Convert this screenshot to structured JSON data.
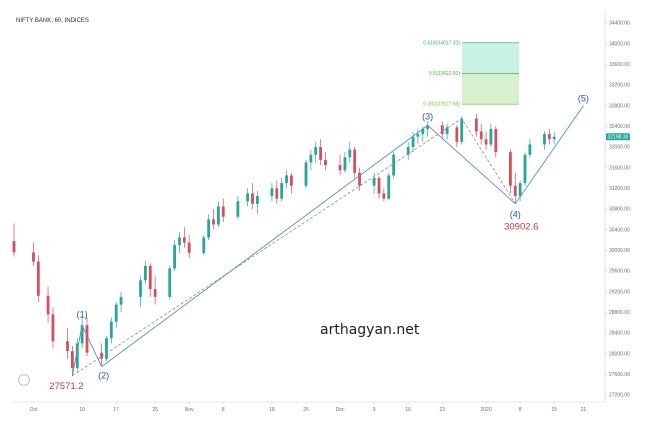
{
  "chart_data": {
    "type": "candlestick",
    "title": "NIFTY BANK, 60, INDICES",
    "xlabel": "",
    "ylabel": "",
    "ylim": [
      27100,
      34500
    ],
    "y_ticks": [
      {
        "value": 34400,
        "label": "34400.00"
      },
      {
        "value": 34000,
        "label": "34000.00"
      },
      {
        "value": 33600,
        "label": "33600.00"
      },
      {
        "value": 33200,
        "label": "33200.00"
      },
      {
        "value": 32800,
        "label": "32800.00"
      },
      {
        "value": 32400,
        "label": "32400.00"
      },
      {
        "value": 32000,
        "label": "32000.00"
      },
      {
        "value": 31600,
        "label": "31600.00"
      },
      {
        "value": 31200,
        "label": "31200.00"
      },
      {
        "value": 30800,
        "label": "30800.00"
      },
      {
        "value": 30400,
        "label": "30400.00"
      },
      {
        "value": 30000,
        "label": "30000.00"
      },
      {
        "value": 29600,
        "label": "29600.00"
      },
      {
        "value": 29200,
        "label": "29200.00"
      },
      {
        "value": 28800,
        "label": "28800.00"
      },
      {
        "value": 28400,
        "label": "28400.00"
      },
      {
        "value": 28000,
        "label": "28000.00"
      },
      {
        "value": 27600,
        "label": "27600.00"
      },
      {
        "value": 27200,
        "label": "27200.00"
      }
    ],
    "x_ticks": [
      {
        "value": "2019-09-30",
        "label": "Oct"
      },
      {
        "value": "2019-10-10",
        "label": "10"
      },
      {
        "value": "2019-10-17",
        "label": "17"
      },
      {
        "value": "2019-10-25",
        "label": "25"
      },
      {
        "value": "2019-11-01",
        "label": "Nov"
      },
      {
        "value": "2019-11-08",
        "label": "8"
      },
      {
        "value": "2019-11-18",
        "label": "18"
      },
      {
        "value": "2019-11-25",
        "label": "25"
      },
      {
        "value": "2019-12-02",
        "label": "Dec"
      },
      {
        "value": "2019-12-09",
        "label": "9"
      },
      {
        "value": "2019-12-16",
        "label": "16"
      },
      {
        "value": "2019-12-23",
        "label": "23"
      },
      {
        "value": "2020-01-01",
        "label": "2020"
      },
      {
        "value": "2020-01-08",
        "label": "8"
      },
      {
        "value": "2020-01-15",
        "label": "15"
      },
      {
        "value": "2020-01-21",
        "label": "21"
      }
    ],
    "series": [
      {
        "values": [
          {
            "t": "2019-09-26",
            "o": 30180,
            "h": 30520,
            "l": 29880,
            "c": 29960
          },
          {
            "t": "2019-09-30",
            "o": 29960,
            "h": 30150,
            "l": 29700,
            "c": 29780
          },
          {
            "t": "2019-10-01",
            "o": 29780,
            "h": 29900,
            "l": 29000,
            "c": 29120
          },
          {
            "t": "2019-10-03",
            "o": 29120,
            "h": 29300,
            "l": 28600,
            "c": 28760
          },
          {
            "t": "2019-10-04",
            "o": 28760,
            "h": 28900,
            "l": 28100,
            "c": 28240
          },
          {
            "t": "2019-10-07",
            "o": 28240,
            "h": 28500,
            "l": 27900,
            "c": 28050
          },
          {
            "t": "2019-10-08",
            "o": 28050,
            "h": 28150,
            "l": 27571.2,
            "c": 27720
          },
          {
            "t": "2019-10-09",
            "o": 27720,
            "h": 28300,
            "l": 27650,
            "c": 28200
          },
          {
            "t": "2019-10-10",
            "o": 28200,
            "h": 28700,
            "l": 28100,
            "c": 28550
          },
          {
            "t": "2019-10-11",
            "o": 28550,
            "h": 28700,
            "l": 27950,
            "c": 28020
          },
          {
            "t": "2019-10-14",
            "o": 28020,
            "h": 28200,
            "l": 27750,
            "c": 27900
          },
          {
            "t": "2019-10-15",
            "o": 27900,
            "h": 28350,
            "l": 27850,
            "c": 28300
          },
          {
            "t": "2019-10-16",
            "o": 28300,
            "h": 28700,
            "l": 28200,
            "c": 28620
          },
          {
            "t": "2019-10-17",
            "o": 28620,
            "h": 29000,
            "l": 28500,
            "c": 28950
          },
          {
            "t": "2019-10-18",
            "o": 28950,
            "h": 29200,
            "l": 28800,
            "c": 29100
          },
          {
            "t": "2019-10-22",
            "o": 29100,
            "h": 29500,
            "l": 28900,
            "c": 29420
          },
          {
            "t": "2019-10-23",
            "o": 29420,
            "h": 29800,
            "l": 29350,
            "c": 29700
          },
          {
            "t": "2019-10-24",
            "o": 29700,
            "h": 29750,
            "l": 29100,
            "c": 29250
          },
          {
            "t": "2019-10-25",
            "o": 29250,
            "h": 29500,
            "l": 28950,
            "c": 29100
          },
          {
            "t": "2019-10-28",
            "o": 29100,
            "h": 29700,
            "l": 29050,
            "c": 29650
          },
          {
            "t": "2019-10-29",
            "o": 29650,
            "h": 30200,
            "l": 29600,
            "c": 30100
          },
          {
            "t": "2019-10-30",
            "o": 30100,
            "h": 30350,
            "l": 29950,
            "c": 30250
          },
          {
            "t": "2019-10-31",
            "o": 30250,
            "h": 30450,
            "l": 30050,
            "c": 30150
          },
          {
            "t": "2019-11-01",
            "o": 30150,
            "h": 30300,
            "l": 29850,
            "c": 29950
          },
          {
            "t": "2019-11-04",
            "o": 29950,
            "h": 30300,
            "l": 29900,
            "c": 30250
          },
          {
            "t": "2019-11-05",
            "o": 30250,
            "h": 30700,
            "l": 30200,
            "c": 30600
          },
          {
            "t": "2019-11-06",
            "o": 30600,
            "h": 30800,
            "l": 30400,
            "c": 30500
          },
          {
            "t": "2019-11-07",
            "o": 30500,
            "h": 30950,
            "l": 30450,
            "c": 30850
          },
          {
            "t": "2019-11-08",
            "o": 30850,
            "h": 31000,
            "l": 30550,
            "c": 30650
          },
          {
            "t": "2019-11-11",
            "o": 30650,
            "h": 31050,
            "l": 30600,
            "c": 30950
          },
          {
            "t": "2019-11-13",
            "o": 30950,
            "h": 31200,
            "l": 30850,
            "c": 31100
          },
          {
            "t": "2019-11-14",
            "o": 31100,
            "h": 31300,
            "l": 30800,
            "c": 30900
          },
          {
            "t": "2019-11-15",
            "o": 30900,
            "h": 31150,
            "l": 30700,
            "c": 31050
          },
          {
            "t": "2019-11-18",
            "o": 31050,
            "h": 31300,
            "l": 30950,
            "c": 31200
          },
          {
            "t": "2019-11-19",
            "o": 31200,
            "h": 31350,
            "l": 30900,
            "c": 31000
          },
          {
            "t": "2019-11-20",
            "o": 31000,
            "h": 31400,
            "l": 30950,
            "c": 31300
          },
          {
            "t": "2019-11-21",
            "o": 31300,
            "h": 31550,
            "l": 31200,
            "c": 31450
          },
          {
            "t": "2019-11-22",
            "o": 31450,
            "h": 31500,
            "l": 31100,
            "c": 31250
          },
          {
            "t": "2019-11-25",
            "o": 31250,
            "h": 31750,
            "l": 31200,
            "c": 31700
          },
          {
            "t": "2019-11-26",
            "o": 31700,
            "h": 31950,
            "l": 31550,
            "c": 31850
          },
          {
            "t": "2019-11-27",
            "o": 31850,
            "h": 32100,
            "l": 31700,
            "c": 32000
          },
          {
            "t": "2019-11-28",
            "o": 32000,
            "h": 32150,
            "l": 31650,
            "c": 31750
          },
          {
            "t": "2019-11-29",
            "o": 31750,
            "h": 31900,
            "l": 31550,
            "c": 31650
          },
          {
            "t": "2019-12-02",
            "o": 31650,
            "h": 31850,
            "l": 31450,
            "c": 31550
          },
          {
            "t": "2019-12-03",
            "o": 31550,
            "h": 31900,
            "l": 31500,
            "c": 31800
          },
          {
            "t": "2019-12-04",
            "o": 31800,
            "h": 32100,
            "l": 31700,
            "c": 31950
          },
          {
            "t": "2019-12-05",
            "o": 31950,
            "h": 32000,
            "l": 31400,
            "c": 31500
          },
          {
            "t": "2019-12-06",
            "o": 31500,
            "h": 31600,
            "l": 31150,
            "c": 31250
          },
          {
            "t": "2019-12-09",
            "o": 31250,
            "h": 31500,
            "l": 31100,
            "c": 31400
          },
          {
            "t": "2019-12-10",
            "o": 31400,
            "h": 31450,
            "l": 31000,
            "c": 31100
          },
          {
            "t": "2019-12-11",
            "o": 31100,
            "h": 31200,
            "l": 30950,
            "c": 31000
          },
          {
            "t": "2019-12-12",
            "o": 31000,
            "h": 31500,
            "l": 30980,
            "c": 31450
          },
          {
            "t": "2019-12-13",
            "o": 31450,
            "h": 31900,
            "l": 31400,
            "c": 31850
          },
          {
            "t": "2019-12-16",
            "o": 31850,
            "h": 32100,
            "l": 31750,
            "c": 32000
          },
          {
            "t": "2019-12-17",
            "o": 32000,
            "h": 32300,
            "l": 31900,
            "c": 32200
          },
          {
            "t": "2019-12-18",
            "o": 32200,
            "h": 32350,
            "l": 32050,
            "c": 32250
          },
          {
            "t": "2019-12-19",
            "o": 32250,
            "h": 32400,
            "l": 32100,
            "c": 32350
          },
          {
            "t": "2019-12-20",
            "o": 32350,
            "h": 32500,
            "l": 32200,
            "c": 32420
          },
          {
            "t": "2019-12-23",
            "o": 32420,
            "h": 32500,
            "l": 32150,
            "c": 32250
          },
          {
            "t": "2019-12-24",
            "o": 32250,
            "h": 32450,
            "l": 32150,
            "c": 32380
          },
          {
            "t": "2019-12-26",
            "o": 32380,
            "h": 32420,
            "l": 32000,
            "c": 32100
          },
          {
            "t": "2019-12-27",
            "o": 32100,
            "h": 32600,
            "l": 32050,
            "c": 32550
          },
          {
            "t": "2019-12-30",
            "o": 32550,
            "h": 32650,
            "l": 32200,
            "c": 32300
          },
          {
            "t": "2019-12-31",
            "o": 32300,
            "h": 32450,
            "l": 32050,
            "c": 32150
          },
          {
            "t": "2020-01-01",
            "o": 32150,
            "h": 32300,
            "l": 31950,
            "c": 32050
          },
          {
            "t": "2020-01-02",
            "o": 32050,
            "h": 32450,
            "l": 32000,
            "c": 32350
          },
          {
            "t": "2020-01-03",
            "o": 32350,
            "h": 32400,
            "l": 31800,
            "c": 31900
          },
          {
            "t": "2020-01-06",
            "o": 31900,
            "h": 31950,
            "l": 31100,
            "c": 31250
          },
          {
            "t": "2020-01-07",
            "o": 31250,
            "h": 31500,
            "l": 30902.6,
            "c": 31050
          },
          {
            "t": "2020-01-08",
            "o": 31050,
            "h": 31350,
            "l": 30950,
            "c": 31300
          },
          {
            "t": "2020-01-09",
            "o": 31300,
            "h": 31900,
            "l": 31250,
            "c": 31850
          },
          {
            "t": "2020-01-10",
            "o": 31850,
            "h": 32150,
            "l": 31800,
            "c": 32050
          },
          {
            "t": "2020-01-13",
            "o": 32050,
            "h": 32300,
            "l": 31950,
            "c": 32250
          },
          {
            "t": "2020-01-14",
            "o": 32250,
            "h": 32350,
            "l": 32050,
            "c": 32150
          },
          {
            "t": "2020-01-15",
            "o": 32150,
            "h": 32300,
            "l": 32050,
            "c": 32198.3
          }
        ]
      }
    ],
    "colors": {
      "up": "#26a69a",
      "down": "#d94e5b",
      "line": "#5b8fb5",
      "dash": "#8c8c9a",
      "label": "#2a5b8a",
      "price_label": "#c0393b",
      "last_price_bg": "#26a69a"
    },
    "last_price": {
      "value": 32198.3,
      "label": "32198.30"
    },
    "fibonacci": {
      "levels": [
        {
          "label": "0.618(34017.32)",
          "value": 34017.32,
          "color": "#3cb48a"
        },
        {
          "label": "0.5(33422.60)",
          "value": 33422.6,
          "color": "#4caf50"
        },
        {
          "label": "0.382(32827.88)",
          "value": 32827.88,
          "color": "#8bc34a"
        }
      ],
      "zones": [
        {
          "from": 33422.6,
          "to": 34017.32,
          "color": "#c9f2e4"
        },
        {
          "from": 32827.88,
          "to": 33422.6,
          "color": "#d7f0cf"
        }
      ]
    },
    "wave_labels": [
      {
        "label": "(1)",
        "t": "2019-10-10",
        "y": 28550
      },
      {
        "label": "(2)",
        "t": "2019-10-14",
        "y": 27750
      },
      {
        "label": "(3)",
        "t": "2019-12-20",
        "y": 32420
      },
      {
        "label": "(4)",
        "t": "2020-01-07",
        "y": 30902.6
      },
      {
        "label": "(5)",
        "t": "2020-01-21",
        "y": 32800
      }
    ],
    "wave_lines": {
      "solid": [
        {
          "t": "2019-10-08",
          "y": 27571.2
        },
        {
          "t": "2019-10-10",
          "y": 28550
        },
        {
          "t": "2019-10-14",
          "y": 27750
        },
        {
          "t": "2019-12-20",
          "y": 32420
        },
        {
          "t": "2020-01-07",
          "y": 30902.6
        },
        {
          "t": "2020-01-21",
          "y": 32800
        }
      ],
      "dashed": [
        {
          "t": "2019-10-08",
          "y": 27571.2
        },
        {
          "t": "2019-12-27",
          "y": 32550
        },
        {
          "t": "2020-01-07",
          "y": 30902.6
        }
      ]
    },
    "price_annotations": [
      {
        "label": "27571.2",
        "t": "2019-10-08",
        "y": 27571.2
      },
      {
        "label": "30902.6",
        "t": "2020-01-07",
        "y": 30902.6
      }
    ],
    "watermark": "arthagyan.net",
    "grid": false,
    "legend": "none"
  }
}
